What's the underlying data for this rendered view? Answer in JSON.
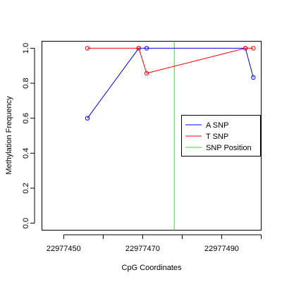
{
  "chart_data": {
    "type": "line",
    "title": "",
    "xlabel": "CpG Coordinates",
    "ylabel": "Methylation Frequency",
    "xlim": [
      22977444.5,
      22977500
    ],
    "ylim": [
      -0.04,
      1.04
    ],
    "xticks": [
      22977450,
      22977470,
      22977490
    ],
    "xtick_labels": [
      "22977450",
      "22977470",
      "22977490"
    ],
    "yticks": [
      0.0,
      0.2,
      0.4,
      0.6,
      0.8,
      1.0
    ],
    "ytick_labels": [
      "0.0",
      "0.2",
      "0.4",
      "0.6",
      "0.8",
      "1.0"
    ],
    "grid": false,
    "legend_position": "right",
    "series": [
      {
        "name": "A SNP",
        "color": "#0000ff",
        "points": [
          [
            22977456,
            0.6
          ],
          [
            22977469,
            1.0
          ],
          [
            22977471,
            1.0
          ],
          [
            22977496,
            1.0
          ],
          [
            22977498,
            0.833
          ]
        ]
      },
      {
        "name": "T SNP",
        "color": "#ff0000",
        "points": [
          [
            22977456,
            1.0
          ],
          [
            22977469,
            1.0
          ],
          [
            22977471,
            0.857
          ],
          [
            22977496,
            1.0
          ],
          [
            22977498,
            1.0
          ]
        ]
      }
    ],
    "reference_line": {
      "name": "SNP Position",
      "color": "#00ff00",
      "x": 22977478
    }
  }
}
